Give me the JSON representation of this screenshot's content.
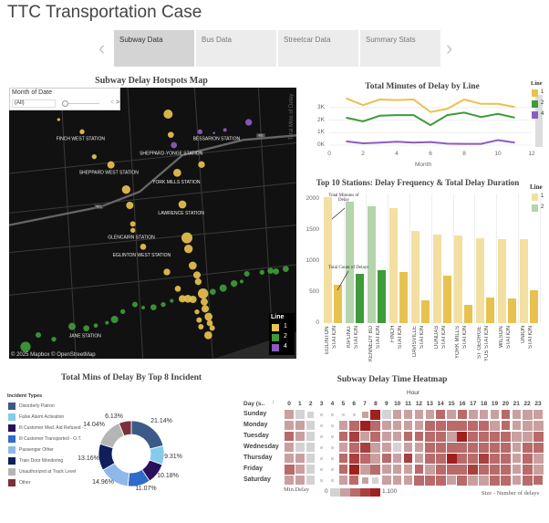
{
  "app_title": "TTC Transportation Case",
  "nav": {
    "prev_icon": "chevron-left-icon",
    "next_icon": "chevron-right-icon",
    "tabs": [
      {
        "label": "Subway Data",
        "active": true
      },
      {
        "label": "Bus Data",
        "active": false
      },
      {
        "label": "Streetcar Data",
        "active": false
      },
      {
        "label": "Summary Stats",
        "active": false
      }
    ]
  },
  "line_colors": {
    "1": "#e8c24f",
    "2": "#3f9a3a",
    "4": "#8c5cc0"
  },
  "map": {
    "title": "Subway Delay Hotspots Map",
    "filter": {
      "label": "Month of Date",
      "value": "(All)",
      "prev": "<",
      "next": ">"
    },
    "attribution": "© 2025 Mapbox © OpenStreetMap",
    "station_labels": [
      "FINCH WEST STATION",
      "BESSARION STATION",
      "SHEPPARD-YONGE STATION",
      "SHEPPARD WEST STATION",
      "YORK MILLS STATION",
      "LAWRENCE STATION",
      "GLENCAIRN STATION",
      "EGLINTON WEST STATION",
      "JANE STATION"
    ],
    "highway_labels": [
      "401",
      "401"
    ],
    "legend": {
      "title": "Line",
      "items": [
        "1",
        "2",
        "4"
      ]
    }
  },
  "chart_data": [
    {
      "type": "line",
      "title": "Total Minutes of Delay by Line",
      "xlabel": "Month",
      "ylabel": "Total Mins of Delay",
      "xlim": [
        0,
        12
      ],
      "xticks": [
        "0",
        "2",
        "4",
        "6",
        "8",
        "10",
        "12"
      ],
      "yticks": [
        "0K",
        "1K",
        "2K",
        "3K"
      ],
      "ylim": [
        0,
        4000
      ],
      "x": [
        1,
        2,
        3,
        4,
        5,
        6,
        7,
        8,
        9,
        10,
        11
      ],
      "legend": {
        "title": "Line",
        "placement": "right"
      },
      "series": [
        {
          "name": "1",
          "values": [
            3750,
            3200,
            3650,
            3600,
            3650,
            2650,
            2900,
            3650,
            3300,
            3300,
            3050
          ]
        },
        {
          "name": "2",
          "values": [
            2200,
            1900,
            2350,
            2400,
            2400,
            1600,
            2400,
            2600,
            2250,
            2500,
            2200
          ]
        },
        {
          "name": "4",
          "values": [
            300,
            150,
            200,
            270,
            200,
            250,
            120,
            100,
            100,
            400,
            200
          ]
        }
      ]
    },
    {
      "type": "bar",
      "title": "Top 10 Stations: Delay Frequency & Total Delay Duration",
      "ylim": [
        0,
        2100
      ],
      "yticks": [
        "0",
        "500",
        "1000",
        "1500",
        "2000"
      ],
      "legend": {
        "title": "Line",
        "items": [
          "1",
          "2"
        ],
        "placement": "right"
      },
      "annotations": [
        "Total Minutes of Delay",
        "Total Count of Delays"
      ],
      "categories": [
        {
          "label": [
            "EGLINTON",
            "STATION"
          ],
          "line": "1",
          "minutes": 2030,
          "count": 620
        },
        {
          "label": [
            "KIPLING",
            "STATION"
          ],
          "line": "2",
          "minutes": 1960,
          "count": 790
        },
        {
          "label": [
            "KENNEDY BD",
            "STATION"
          ],
          "line": "2",
          "minutes": 1880,
          "count": 860
        },
        {
          "label": [
            "FINCH",
            "STATION"
          ],
          "line": "1",
          "minutes": 1850,
          "count": 820
        },
        {
          "label": [
            "DAVISVILLE",
            "STATION"
          ],
          "line": "1",
          "minutes": 1490,
          "count": 370
        },
        {
          "label": [
            "DUNDAS",
            "STATION"
          ],
          "line": "1",
          "minutes": 1430,
          "count": 760
        },
        {
          "label": [
            "YORK MILLS",
            "STATION"
          ],
          "line": "1",
          "minutes": 1410,
          "count": 290
        },
        {
          "label": [
            "ST GEORGE",
            "YUS STATION"
          ],
          "line": "1",
          "minutes": 1370,
          "count": 410
        },
        {
          "label": [
            "WILSON",
            "STATION"
          ],
          "line": "1",
          "minutes": 1360,
          "count": 395
        },
        {
          "label": [
            "UNION",
            "STATION"
          ],
          "line": "1",
          "minutes": 1360,
          "count": 530
        }
      ]
    },
    {
      "type": "pie",
      "title": "Total Mins of Delay By Top 8 Incident",
      "legend": {
        "title": "Incident Types",
        "placement": "left"
      },
      "slices": [
        {
          "label": "Disorderly Patron",
          "value": 21.14,
          "text": "21.14%",
          "color": "#3b5a87"
        },
        {
          "label": "False Alarm Activation",
          "value": 9.31,
          "text": "9.31%",
          "color": "#86cbea"
        },
        {
          "label": "Ill Customer Med. Aid Refused -...",
          "value": 10.18,
          "text": "10.18%",
          "color": "#2a0f5c"
        },
        {
          "label": "Ill Customer Transported - O.T.",
          "value": 11.07,
          "text": "11.07%",
          "color": "#2f6bc9"
        },
        {
          "label": "Passenger Other",
          "value": 14.96,
          "text": "14.96%",
          "color": "#8fb8ea"
        },
        {
          "label": "Train Door Monitoring",
          "value": 13.16,
          "text": "13.16%",
          "color": "#0f1f5c"
        },
        {
          "label": "Unauthorized at Track Level",
          "value": 14.04,
          "text": "14.04%",
          "color": "#b5b5b5"
        },
        {
          "label": "Other",
          "value": 6.13,
          "text": "6.13%",
          "color": "#7a3039"
        }
      ]
    },
    {
      "type": "heatmap",
      "title": "Subway Delay Time Heatmap",
      "xlabel": "Hour",
      "row_header": "Day (s..",
      "hours": [
        "0",
        "1",
        "2",
        "3",
        "4",
        "5",
        "6",
        "7",
        "8",
        "9",
        "10",
        "11",
        "12",
        "13",
        "14",
        "15",
        "16",
        "17",
        "18",
        "19",
        "20",
        "21",
        "22",
        "23"
      ],
      "days": [
        "Sunday",
        "Monday",
        "Tuesday",
        "Wednesday",
        "Thursday",
        "Friday",
        "Saturday"
      ],
      "color_legend": {
        "label": "Min.Delay",
        "min": "0",
        "max": "1,100",
        "colors": [
          "#d3d3d3",
          "#c9a0a0",
          "#b96a6a",
          "#a84040",
          "#a0201e"
        ]
      },
      "size_legend": "Size - Number of delays",
      "min_delay_level": [
        [
          1,
          0,
          0,
          0,
          0,
          0,
          0,
          1,
          4,
          0,
          1,
          1,
          1,
          1,
          2,
          1,
          2,
          1,
          1,
          1,
          2,
          1,
          1,
          1
        ],
        [
          1,
          1,
          0,
          0,
          0,
          1,
          2,
          4,
          2,
          1,
          1,
          1,
          1,
          2,
          2,
          2,
          2,
          2,
          2,
          1,
          2,
          1,
          1,
          1
        ],
        [
          2,
          1,
          0,
          0,
          0,
          2,
          3,
          1,
          2,
          1,
          1,
          2,
          2,
          2,
          2,
          1,
          4,
          2,
          2,
          2,
          2,
          1,
          1,
          2
        ],
        [
          1,
          0,
          0,
          0,
          0,
          1,
          2,
          3,
          1,
          1,
          0,
          1,
          1,
          2,
          2,
          2,
          2,
          2,
          2,
          2,
          2,
          1,
          2,
          2
        ],
        [
          1,
          1,
          0,
          0,
          0,
          2,
          3,
          2,
          1,
          2,
          1,
          3,
          1,
          2,
          2,
          4,
          2,
          2,
          3,
          2,
          2,
          1,
          2,
          1
        ],
        [
          2,
          1,
          0,
          0,
          0,
          2,
          4,
          1,
          2,
          1,
          1,
          1,
          2,
          1,
          2,
          2,
          2,
          3,
          2,
          2,
          2,
          1,
          2,
          1
        ],
        [
          1,
          1,
          0,
          0,
          0,
          1,
          2,
          1,
          0,
          1,
          1,
          1,
          2,
          2,
          2,
          1,
          2,
          1,
          1,
          2,
          2,
          1,
          2,
          2
        ]
      ],
      "count_level": [
        [
          3,
          3,
          2,
          1,
          1,
          1,
          1,
          2,
          4,
          3,
          3,
          3,
          3,
          3,
          3,
          3,
          3,
          3,
          3,
          3,
          3,
          3,
          4,
          3
        ],
        [
          3,
          3,
          3,
          1,
          1,
          3,
          4,
          4,
          4,
          3,
          3,
          3,
          3,
          4,
          4,
          4,
          4,
          4,
          4,
          4,
          3,
          3,
          4,
          4
        ],
        [
          3,
          3,
          3,
          1,
          1,
          3,
          4,
          3,
          4,
          3,
          3,
          3,
          3,
          4,
          4,
          4,
          4,
          4,
          4,
          4,
          4,
          4,
          4,
          4
        ],
        [
          3,
          3,
          3,
          1,
          1,
          3,
          4,
          4,
          4,
          3,
          3,
          3,
          3,
          4,
          4,
          4,
          4,
          4,
          4,
          4,
          4,
          3,
          4,
          4
        ],
        [
          3,
          3,
          3,
          1,
          1,
          3,
          4,
          4,
          4,
          3,
          3,
          3,
          3,
          4,
          4,
          4,
          4,
          4,
          4,
          4,
          4,
          3,
          4,
          4
        ],
        [
          4,
          3,
          3,
          1,
          1,
          3,
          4,
          4,
          4,
          3,
          3,
          3,
          3,
          4,
          4,
          4,
          4,
          4,
          4,
          4,
          4,
          3,
          4,
          4
        ],
        [
          3,
          3,
          3,
          1,
          1,
          3,
          3,
          2,
          2,
          3,
          3,
          3,
          4,
          4,
          4,
          3,
          4,
          4,
          4,
          4,
          4,
          3,
          4,
          3
        ]
      ]
    }
  ]
}
